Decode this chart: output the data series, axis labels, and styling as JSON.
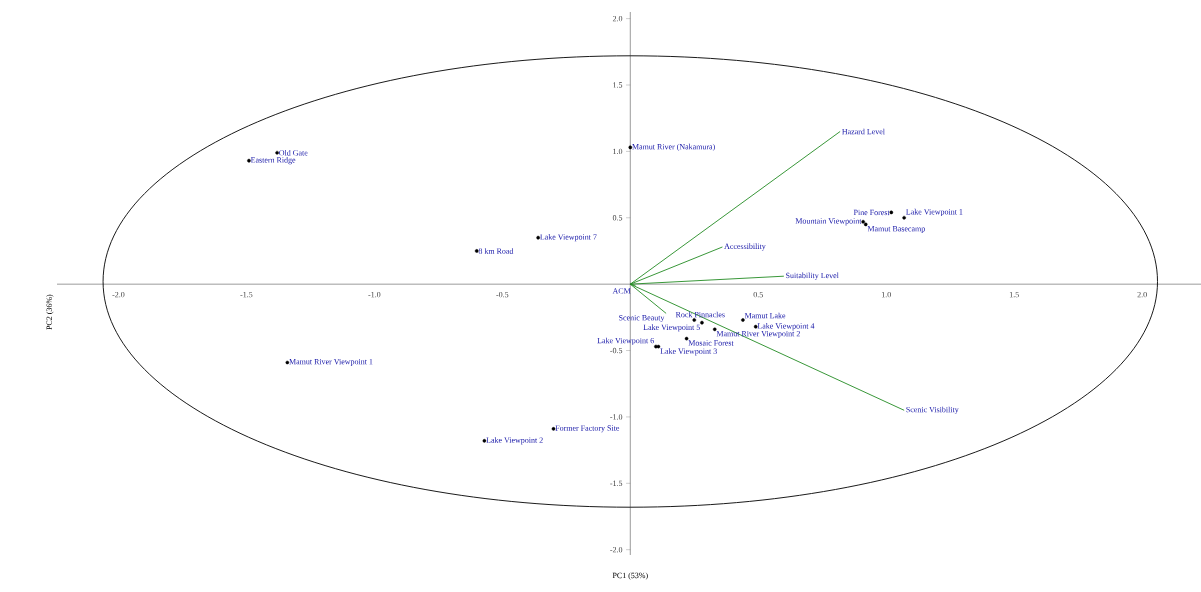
{
  "chart_data": {
    "type": "scatter",
    "xlabel": "PC1 (53%)",
    "ylabel": "PC2 (36%)",
    "xlim": [
      -2.24,
      2.23
    ],
    "ylim": [
      -2.04,
      2.05
    ],
    "xticks": [
      {
        "value": -2,
        "label": "-2.0"
      },
      {
        "value": -1.5,
        "label": "-1.5"
      },
      {
        "value": -1,
        "label": "-1.0"
      },
      {
        "value": -0.5,
        "label": "-0.5"
      },
      {
        "value": 0.5,
        "label": "0.5"
      },
      {
        "value": 1,
        "label": "1.0"
      },
      {
        "value": 1.5,
        "label": "1.5"
      },
      {
        "value": 2,
        "label": "2.0"
      }
    ],
    "yticks": [
      {
        "value": -2,
        "label": "-2.0"
      },
      {
        "value": -1.5,
        "label": "-1.5"
      },
      {
        "value": -1,
        "label": "-1.0"
      },
      {
        "value": -0.5,
        "label": "-0.5"
      },
      {
        "value": 0.5,
        "label": "0.5"
      },
      {
        "value": 1,
        "label": "1.0"
      },
      {
        "value": 1.5,
        "label": "1.5"
      },
      {
        "value": 2,
        "label": "2.0"
      }
    ],
    "grid": false,
    "line_style": "solid",
    "series": [
      {
        "type": "scatter",
        "marker": "circle",
        "color": "#000000",
        "x": [
          -1.38,
          -1.49,
          0.0,
          -0.36,
          -0.6,
          1.02,
          1.07,
          0.91,
          0.92,
          -1.34,
          -0.3,
          -0.57,
          0.25,
          0.28,
          0.44,
          0.49,
          0.33,
          0.22,
          0.11,
          0.1
        ],
        "values": [
          0.99,
          0.93,
          1.03,
          0.35,
          0.25,
          0.54,
          0.5,
          0.47,
          0.45,
          -0.59,
          -1.09,
          -1.18,
          -0.27,
          -0.29,
          -0.27,
          -0.32,
          -0.34,
          -0.41,
          -0.47,
          -0.47
        ]
      },
      {
        "type": "line",
        "marker": "none",
        "name": "Hazard Level",
        "color": "#228b22",
        "x": [
          0,
          0.82
        ],
        "values": [
          0,
          1.15
        ]
      },
      {
        "type": "line",
        "marker": "none",
        "name": "Accessibility",
        "color": "#228b22",
        "x": [
          0,
          0.36
        ],
        "values": [
          0,
          0.28
        ]
      },
      {
        "type": "line",
        "marker": "none",
        "name": "Suitability Level",
        "color": "#228b22",
        "x": [
          0,
          0.6
        ],
        "values": [
          0,
          0.06
        ]
      },
      {
        "type": "line",
        "marker": "none",
        "name": "Scenic Visibility",
        "color": "#228b22",
        "x": [
          0,
          1.07
        ],
        "values": [
          0,
          -0.95
        ]
      },
      {
        "type": "line",
        "marker": "none",
        "name": "Scenic Beauty",
        "color": "#228b22",
        "x": [
          0,
          0.14
        ],
        "values": [
          0,
          -0.22
        ]
      },
      {
        "type": "line",
        "marker": "none",
        "name": "ACM",
        "color": "#228b22",
        "x": [
          0,
          0.02
        ],
        "values": [
          0,
          -0.01
        ]
      }
    ],
    "annotations": [
      {
        "text": "Old Gate",
        "x": -1.38,
        "y": 0.99
      },
      {
        "text": "Eastern Ridge",
        "x": -1.49,
        "y": 0.93
      },
      {
        "text": "Mamut River (Nakamura)",
        "x": 0.0,
        "y": 1.03
      },
      {
        "text": "Lake Viewpoint 7",
        "x": -0.36,
        "y": 0.35
      },
      {
        "text": "8 km Road",
        "x": -0.6,
        "y": 0.25
      },
      {
        "text": "Pine Forest",
        "x": 1.02,
        "y": 0.54
      },
      {
        "text": "Lake Viewpoint 1",
        "x": 1.07,
        "y": 0.5
      },
      {
        "text": "Mountain Viewpoint",
        "x": 0.91,
        "y": 0.47
      },
      {
        "text": "Mamut Basecamp",
        "x": 0.92,
        "y": 0.45
      },
      {
        "text": "Mamut River Viewpoint 1",
        "x": -1.34,
        "y": -0.59
      },
      {
        "text": "Former Factory Site",
        "x": -0.3,
        "y": -1.09
      },
      {
        "text": "Lake Viewpoint 2",
        "x": -0.57,
        "y": -1.18
      },
      {
        "text": "Rock Pinnacles",
        "x": 0.25,
        "y": -0.27
      },
      {
        "text": "Lake Viewpoint 5",
        "x": 0.28,
        "y": -0.29
      },
      {
        "text": "Mamut Lake",
        "x": 0.44,
        "y": -0.27
      },
      {
        "text": "Lake Viewpoint 4",
        "x": 0.49,
        "y": -0.32
      },
      {
        "text": "Mamut River Viewpoint 2",
        "x": 0.33,
        "y": -0.34
      },
      {
        "text": "Mosaic Forest",
        "x": 0.22,
        "y": -0.41
      },
      {
        "text": "Lake Viewpoint 3",
        "x": 0.11,
        "y": -0.47
      },
      {
        "text": "Lake Viewpoint 6",
        "x": 0.1,
        "y": -0.47
      }
    ]
  }
}
